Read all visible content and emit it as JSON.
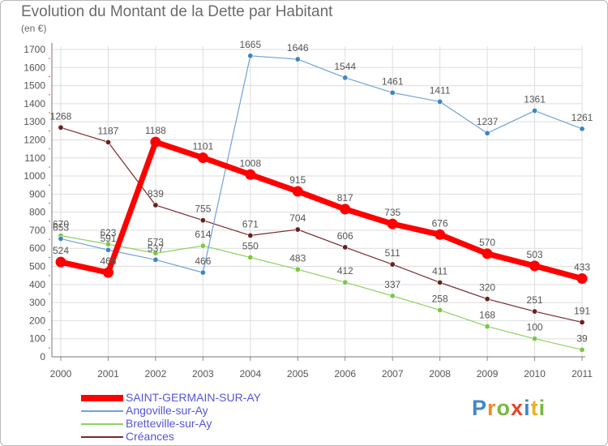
{
  "title": "Evolution du Montant de la Dette par Habitant",
  "unit": "(en €)",
  "brand": {
    "text": "Proxiti",
    "colors": [
      "#3f88c8",
      "#f08a24",
      "#78b843",
      "#e0462a",
      "#3f88c8",
      "#f0b020",
      "#78b843"
    ]
  },
  "chart_data": {
    "type": "line",
    "title": "Evolution du Montant de la Dette par Habitant",
    "subtitle": "(en €)",
    "xlabel": "",
    "ylabel": "",
    "categories": [
      "2000",
      "2001",
      "2002",
      "2003",
      "2004",
      "2005",
      "2006",
      "2007",
      "2008",
      "2009",
      "2010",
      "2011"
    ],
    "ylim": [
      0,
      1700
    ],
    "yticks": [
      0,
      100,
      200,
      300,
      400,
      500,
      600,
      700,
      800,
      900,
      1000,
      1100,
      1200,
      1300,
      1400,
      1500,
      1600,
      1700
    ],
    "grid": true,
    "legend": "bottom-left",
    "series": [
      {
        "name": "Créances",
        "color": "#7a2a2a",
        "marker": "#6b1f1f",
        "width": 1.2,
        "values": [
          1268,
          1187,
          839,
          755,
          671,
          704,
          606,
          511,
          411,
          320,
          251,
          191
        ]
      },
      {
        "name": "Bretteville-sur-Ay",
        "color": "#8fd15e",
        "marker": "#7cc646",
        "width": 1.2,
        "values": [
          670,
          623,
          573,
          614,
          550,
          483,
          412,
          337,
          258,
          168,
          100,
          39
        ]
      },
      {
        "name": "Angoville-sur-Ay",
        "color": "#6fa2d8",
        "marker": "#3b86c6",
        "width": 1.2,
        "values": [
          653,
          591,
          537,
          466,
          1665,
          1646,
          1544,
          1461,
          1411,
          1237,
          1361,
          1261
        ]
      },
      {
        "name": "SAINT-GERMAIN-SUR-AY",
        "color": "#ff0000",
        "marker": "#ff0000",
        "width": 7,
        "values": [
          524,
          466,
          1188,
          1101,
          1008,
          915,
          817,
          735,
          676,
          570,
          503,
          433
        ]
      }
    ],
    "legend_order": [
      "SAINT-GERMAIN-SUR-AY",
      "Angoville-sur-Ay",
      "Bretteville-sur-Ay",
      "Créances"
    ]
  }
}
